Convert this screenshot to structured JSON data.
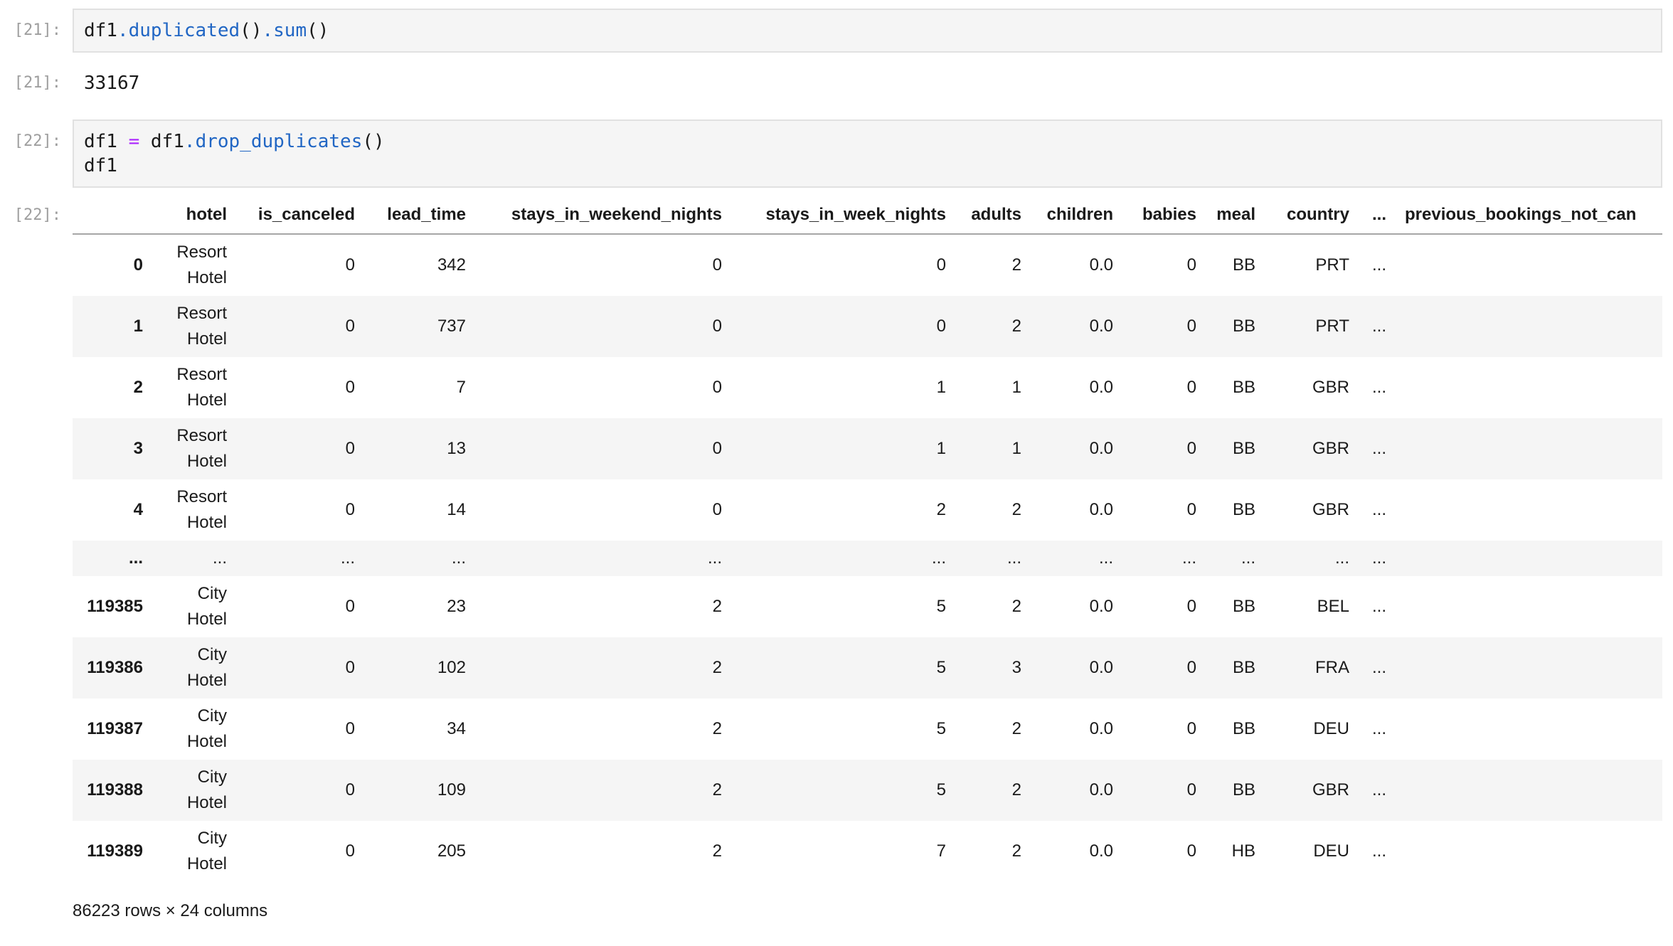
{
  "colors": {
    "plain": "#1a1a1a",
    "method": "#2166c4",
    "operator": "#aa22ff",
    "prompt_gray": "#9e9e9e",
    "zebra_bg": "#f5f5f5",
    "cell_bg": "#f5f5f5",
    "cell_border": "#e1e1e1",
    "header_rule": "#a6a6a6"
  },
  "cells": {
    "in21": {
      "prompt": "[21]:",
      "lines": [
        [
          {
            "t": "df1",
            "c": "plain"
          },
          {
            "t": ".",
            "c": "method"
          },
          {
            "t": "duplicated",
            "c": "method"
          },
          {
            "t": "()",
            "c": "plain"
          },
          {
            "t": ".",
            "c": "method"
          },
          {
            "t": "sum",
            "c": "method"
          },
          {
            "t": "()",
            "c": "plain"
          }
        ]
      ]
    },
    "out21": {
      "prompt": "[21]:",
      "text": "33167"
    },
    "in22": {
      "prompt": "[22]:",
      "lines": [
        [
          {
            "t": "df1 ",
            "c": "plain"
          },
          {
            "t": "=",
            "c": "operator"
          },
          {
            "t": " df1",
            "c": "plain"
          },
          {
            "t": ".",
            "c": "method"
          },
          {
            "t": "drop_duplicates",
            "c": "method"
          },
          {
            "t": "()",
            "c": "plain"
          }
        ],
        [
          {
            "t": "df1",
            "c": "plain"
          }
        ]
      ]
    },
    "out22": {
      "prompt": "[22]:",
      "dataframe": {
        "columns": [
          "hotel",
          "is_canceled",
          "lead_time",
          "stays_in_weekend_nights",
          "stays_in_week_nights",
          "adults",
          "children",
          "babies",
          "meal",
          "country",
          "...",
          "previous_bookings_not_can"
        ],
        "rows": [
          {
            "index": "0",
            "cells": [
              "Resort Hotel",
              "0",
              "342",
              "0",
              "0",
              "2",
              "0.0",
              "0",
              "BB",
              "PRT",
              "...",
              ""
            ]
          },
          {
            "index": "1",
            "cells": [
              "Resort Hotel",
              "0",
              "737",
              "0",
              "0",
              "2",
              "0.0",
              "0",
              "BB",
              "PRT",
              "...",
              ""
            ]
          },
          {
            "index": "2",
            "cells": [
              "Resort Hotel",
              "0",
              "7",
              "0",
              "1",
              "1",
              "0.0",
              "0",
              "BB",
              "GBR",
              "...",
              ""
            ]
          },
          {
            "index": "3",
            "cells": [
              "Resort Hotel",
              "0",
              "13",
              "0",
              "1",
              "1",
              "0.0",
              "0",
              "BB",
              "GBR",
              "...",
              ""
            ]
          },
          {
            "index": "4",
            "cells": [
              "Resort Hotel",
              "0",
              "14",
              "0",
              "2",
              "2",
              "0.0",
              "0",
              "BB",
              "GBR",
              "...",
              ""
            ]
          },
          {
            "index": "...",
            "cells": [
              "...",
              "...",
              "...",
              "...",
              "...",
              "...",
              "...",
              "...",
              "...",
              "...",
              "...",
              ""
            ]
          },
          {
            "index": "119385",
            "cells": [
              "City Hotel",
              "0",
              "23",
              "2",
              "5",
              "2",
              "0.0",
              "0",
              "BB",
              "BEL",
              "...",
              ""
            ]
          },
          {
            "index": "119386",
            "cells": [
              "City Hotel",
              "0",
              "102",
              "2",
              "5",
              "3",
              "0.0",
              "0",
              "BB",
              "FRA",
              "...",
              ""
            ]
          },
          {
            "index": "119387",
            "cells": [
              "City Hotel",
              "0",
              "34",
              "2",
              "5",
              "2",
              "0.0",
              "0",
              "BB",
              "DEU",
              "...",
              ""
            ]
          },
          {
            "index": "119388",
            "cells": [
              "City Hotel",
              "0",
              "109",
              "2",
              "5",
              "2",
              "0.0",
              "0",
              "BB",
              "GBR",
              "...",
              ""
            ]
          },
          {
            "index": "119389",
            "cells": [
              "City Hotel",
              "0",
              "205",
              "2",
              "7",
              "2",
              "0.0",
              "0",
              "HB",
              "DEU",
              "...",
              ""
            ]
          }
        ],
        "summary": "86223 rows × 24 columns"
      }
    }
  }
}
